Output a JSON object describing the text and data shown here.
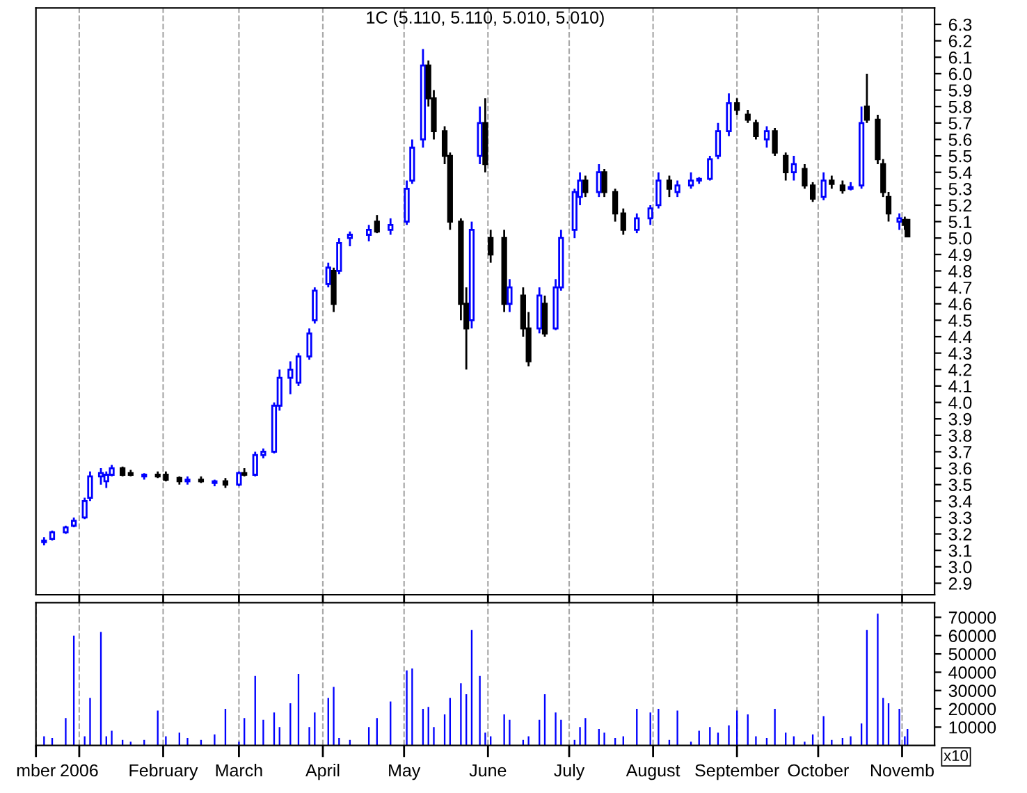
{
  "chart_data": [
    {
      "type": "candlestick",
      "title": "1C (5.110, 5.110, 5.010, 5.010)",
      "x": [
        "2005-12-19",
        "2005-12-22",
        "2005-12-27",
        "2005-12-30",
        "2006-01-03",
        "2006-01-05",
        "2006-01-09",
        "2006-01-11",
        "2006-01-13",
        "2006-01-17",
        "2006-01-20",
        "2006-01-25",
        "2006-01-30",
        "2006-02-02",
        "2006-02-07",
        "2006-02-10",
        "2006-02-15",
        "2006-02-20",
        "2006-02-24",
        "2006-03-01",
        "2006-03-03",
        "2006-03-07",
        "2006-03-10",
        "2006-03-14",
        "2006-03-16",
        "2006-03-20",
        "2006-03-23",
        "2006-03-27",
        "2006-03-29",
        "2006-04-03",
        "2006-04-05",
        "2006-04-07",
        "2006-04-11",
        "2006-04-18",
        "2006-04-21",
        "2006-04-26",
        "2006-05-02",
        "2006-05-04",
        "2006-05-08",
        "2006-05-10",
        "2006-05-12",
        "2006-05-16",
        "2006-05-18",
        "2006-05-22",
        "2006-05-24",
        "2006-05-26",
        "2006-05-29",
        "2006-05-31",
        "2006-06-02",
        "2006-06-07",
        "2006-06-09",
        "2006-06-14",
        "2006-06-16",
        "2006-06-20",
        "2006-06-22",
        "2006-06-26",
        "2006-06-28",
        "2006-07-03",
        "2006-07-05",
        "2006-07-07",
        "2006-07-12",
        "2006-07-14",
        "2006-07-18",
        "2006-07-21",
        "2006-07-26",
        "2006-07-31",
        "2006-08-03",
        "2006-08-07",
        "2006-08-10",
        "2006-08-15",
        "2006-08-18",
        "2006-08-22",
        "2006-08-25",
        "2006-08-29",
        "2006-09-01",
        "2006-09-05",
        "2006-09-08",
        "2006-09-12",
        "2006-09-15",
        "2006-09-19",
        "2006-09-22",
        "2006-09-26",
        "2006-09-29",
        "2006-10-03",
        "2006-10-06",
        "2006-10-10",
        "2006-10-13",
        "2006-10-17",
        "2006-10-19",
        "2006-10-23",
        "2006-10-25",
        "2006-10-27",
        "2006-10-31",
        "2006-11-02",
        "2006-11-03"
      ],
      "ohlc": [
        [
          3.15,
          3.18,
          3.13,
          3.16
        ],
        [
          3.17,
          3.22,
          3.16,
          3.21
        ],
        [
          3.21,
          3.25,
          3.2,
          3.24
        ],
        [
          3.25,
          3.3,
          3.24,
          3.28
        ],
        [
          3.3,
          3.42,
          3.29,
          3.4
        ],
        [
          3.42,
          3.58,
          3.4,
          3.55
        ],
        [
          3.55,
          3.6,
          3.5,
          3.57
        ],
        [
          3.52,
          3.58,
          3.48,
          3.56
        ],
        [
          3.56,
          3.62,
          3.55,
          3.6
        ],
        [
          3.6,
          3.61,
          3.55,
          3.56
        ],
        [
          3.57,
          3.59,
          3.55,
          3.56
        ],
        [
          3.55,
          3.57,
          3.53,
          3.56
        ],
        [
          3.56,
          3.58,
          3.54,
          3.55
        ],
        [
          3.56,
          3.58,
          3.52,
          3.53
        ],
        [
          3.54,
          3.55,
          3.5,
          3.52
        ],
        [
          3.52,
          3.55,
          3.5,
          3.53
        ],
        [
          3.53,
          3.55,
          3.51,
          3.52
        ],
        [
          3.51,
          3.53,
          3.49,
          3.52
        ],
        [
          3.52,
          3.54,
          3.48,
          3.5
        ],
        [
          3.5,
          3.58,
          3.49,
          3.57
        ],
        [
          3.57,
          3.6,
          3.55,
          3.56
        ],
        [
          3.56,
          3.7,
          3.55,
          3.68
        ],
        [
          3.68,
          3.72,
          3.66,
          3.7
        ],
        [
          3.7,
          4.0,
          3.69,
          3.98
        ],
        [
          3.98,
          4.2,
          3.95,
          4.15
        ],
        [
          4.15,
          4.25,
          4.05,
          4.2
        ],
        [
          4.12,
          4.3,
          4.1,
          4.28
        ],
        [
          4.28,
          4.45,
          4.26,
          4.42
        ],
        [
          4.5,
          4.7,
          4.48,
          4.68
        ],
        [
          4.72,
          4.85,
          4.7,
          4.82
        ],
        [
          4.8,
          4.82,
          4.55,
          4.6
        ],
        [
          4.8,
          5.0,
          4.78,
          4.97
        ],
        [
          5.0,
          5.04,
          4.95,
          5.02
        ],
        [
          5.02,
          5.08,
          4.98,
          5.05
        ],
        [
          5.1,
          5.14,
          5.03,
          5.04
        ],
        [
          5.05,
          5.12,
          5.02,
          5.08
        ],
        [
          5.1,
          5.35,
          5.08,
          5.3
        ],
        [
          5.35,
          5.6,
          5.33,
          5.55
        ],
        [
          5.6,
          6.15,
          5.55,
          6.05
        ],
        [
          6.05,
          6.08,
          5.8,
          5.85
        ],
        [
          5.85,
          5.9,
          5.6,
          5.65
        ],
        [
          5.65,
          5.68,
          5.45,
          5.5
        ],
        [
          5.5,
          5.52,
          5.05,
          5.1
        ],
        [
          5.1,
          5.12,
          4.5,
          4.6
        ],
        [
          4.6,
          4.7,
          4.2,
          4.45
        ],
        [
          4.5,
          5.1,
          4.45,
          5.05
        ],
        [
          5.5,
          5.8,
          5.45,
          5.7
        ],
        [
          5.7,
          5.85,
          5.4,
          5.45
        ],
        [
          5.0,
          5.05,
          4.85,
          4.9
        ],
        [
          5.0,
          5.05,
          4.55,
          4.6
        ],
        [
          4.6,
          4.75,
          4.55,
          4.7
        ],
        [
          4.65,
          4.7,
          4.4,
          4.45
        ],
        [
          4.45,
          4.55,
          4.22,
          4.25
        ],
        [
          4.45,
          4.7,
          4.42,
          4.65
        ],
        [
          4.6,
          4.65,
          4.4,
          4.42
        ],
        [
          4.45,
          4.75,
          4.44,
          4.7
        ],
        [
          4.7,
          5.05,
          4.68,
          5.0
        ],
        [
          5.05,
          5.3,
          5.0,
          5.28
        ],
        [
          5.25,
          5.4,
          5.2,
          5.35
        ],
        [
          5.35,
          5.38,
          5.25,
          5.28
        ],
        [
          5.28,
          5.45,
          5.25,
          5.4
        ],
        [
          5.4,
          5.42,
          5.25,
          5.28
        ],
        [
          5.28,
          5.3,
          5.1,
          5.15
        ],
        [
          5.15,
          5.18,
          5.02,
          5.05
        ],
        [
          5.05,
          5.15,
          5.03,
          5.12
        ],
        [
          5.12,
          5.2,
          5.08,
          5.18
        ],
        [
          5.2,
          5.4,
          5.18,
          5.35
        ],
        [
          5.35,
          5.38,
          5.25,
          5.3
        ],
        [
          5.28,
          5.35,
          5.25,
          5.32
        ],
        [
          5.32,
          5.4,
          5.3,
          5.35
        ],
        [
          5.35,
          5.37,
          5.33,
          5.36
        ],
        [
          5.36,
          5.5,
          5.35,
          5.48
        ],
        [
          5.5,
          5.7,
          5.48,
          5.65
        ],
        [
          5.65,
          5.88,
          5.62,
          5.82
        ],
        [
          5.82,
          5.85,
          5.75,
          5.78
        ],
        [
          5.75,
          5.78,
          5.7,
          5.72
        ],
        [
          5.7,
          5.72,
          5.6,
          5.62
        ],
        [
          5.6,
          5.68,
          5.55,
          5.65
        ],
        [
          5.65,
          5.67,
          5.5,
          5.52
        ],
        [
          5.5,
          5.52,
          5.35,
          5.4
        ],
        [
          5.4,
          5.5,
          5.35,
          5.45
        ],
        [
          5.42,
          5.45,
          5.3,
          5.32
        ],
        [
          5.32,
          5.34,
          5.22,
          5.24
        ],
        [
          5.25,
          5.4,
          5.23,
          5.35
        ],
        [
          5.35,
          5.38,
          5.3,
          5.33
        ],
        [
          5.32,
          5.35,
          5.27,
          5.29
        ],
        [
          5.3,
          5.34,
          5.29,
          5.31
        ],
        [
          5.32,
          5.8,
          5.3,
          5.7
        ],
        [
          5.8,
          6.0,
          5.7,
          5.72
        ],
        [
          5.72,
          5.75,
          5.45,
          5.48
        ],
        [
          5.45,
          5.48,
          5.25,
          5.28
        ],
        [
          5.25,
          5.28,
          5.1,
          5.15
        ],
        [
          5.1,
          5.15,
          5.05,
          5.12
        ],
        [
          5.11,
          5.13,
          5.05,
          5.08
        ],
        [
          5.11,
          5.11,
          5.01,
          5.01
        ]
      ],
      "colors": [
        "#0000ff",
        "#0000ff",
        "#0000ff",
        "#0000ff",
        "#0000ff",
        "#0000ff",
        "#0000ff",
        "#0000ff",
        "#0000ff",
        "#000000",
        "#000000",
        "#0000ff",
        "#000000",
        "#000000",
        "#000000",
        "#0000ff",
        "#000000",
        "#0000ff",
        "#000000",
        "#0000ff",
        "#000000",
        "#0000ff",
        "#0000ff",
        "#0000ff",
        "#0000ff",
        "#0000ff",
        "#0000ff",
        "#0000ff",
        "#0000ff",
        "#0000ff",
        "#000000",
        "#0000ff",
        "#0000ff",
        "#0000ff",
        "#000000",
        "#0000ff",
        "#0000ff",
        "#0000ff",
        "#0000ff",
        "#000000",
        "#000000",
        "#000000",
        "#000000",
        "#000000",
        "#000000",
        "#0000ff",
        "#0000ff",
        "#000000",
        "#000000",
        "#000000",
        "#0000ff",
        "#000000",
        "#000000",
        "#0000ff",
        "#000000",
        "#0000ff",
        "#0000ff",
        "#0000ff",
        "#0000ff",
        "#000000",
        "#0000ff",
        "#000000",
        "#000000",
        "#000000",
        "#0000ff",
        "#0000ff",
        "#0000ff",
        "#000000",
        "#0000ff",
        "#0000ff",
        "#0000ff",
        "#0000ff",
        "#0000ff",
        "#0000ff",
        "#000000",
        "#000000",
        "#000000",
        "#0000ff",
        "#000000",
        "#000000",
        "#0000ff",
        "#000000",
        "#000000",
        "#0000ff",
        "#000000",
        "#000000",
        "#0000ff",
        "#0000ff",
        "#000000",
        "#000000",
        "#000000",
        "#000000",
        "#0000ff",
        "#000000",
        "#000000"
      ],
      "xlim": [
        "2005-12-16",
        "2006-11-13"
      ],
      "xticks": [
        {
          "value": "2006-01-01",
          "label": null
        },
        {
          "value": "2006-02-01",
          "label": null
        },
        {
          "value": "2006-03-01",
          "label": null
        },
        {
          "value": "2006-04-01",
          "label": null
        },
        {
          "value": "2006-05-01",
          "label": null
        },
        {
          "value": "2006-06-01",
          "label": null
        },
        {
          "value": "2006-07-01",
          "label": null
        },
        {
          "value": "2006-08-01",
          "label": null
        },
        {
          "value": "2006-09-01",
          "label": null
        },
        {
          "value": "2006-10-01",
          "label": null
        },
        {
          "value": "2006-11-01",
          "label": null
        }
      ],
      "ylim": [
        2.83,
        6.4
      ],
      "yticks": [
        2.9,
        {
          "value": 3,
          "label": "3.0"
        },
        3.1,
        3.2,
        3.3,
        3.4,
        3.5,
        3.6,
        3.7,
        3.8,
        3.9,
        {
          "value": 4,
          "label": "4.0"
        },
        4.1,
        4.2,
        4.3,
        4.4,
        4.5,
        4.6,
        4.7,
        4.8,
        4.9,
        {
          "value": 5,
          "label": "5.0"
        },
        5.1,
        5.2,
        5.3,
        5.4,
        5.5,
        5.6,
        5.7,
        5.8,
        5.9,
        {
          "value": 6,
          "label": "6.0"
        },
        6.1,
        6.2,
        6.3
      ],
      "grid": "x",
      "tick_labels": "y"
    },
    {
      "type": "bar",
      "color": "#0000ff",
      "x": [
        "2005-12-19",
        "2005-12-22",
        "2005-12-27",
        "2005-12-30",
        "2006-01-03",
        "2006-01-05",
        "2006-01-09",
        "2006-01-11",
        "2006-01-13",
        "2006-01-17",
        "2006-01-20",
        "2006-01-25",
        "2006-01-30",
        "2006-02-02",
        "2006-02-07",
        "2006-02-10",
        "2006-02-15",
        "2006-02-20",
        "2006-02-24",
        "2006-03-01",
        "2006-03-03",
        "2006-03-07",
        "2006-03-10",
        "2006-03-14",
        "2006-03-16",
        "2006-03-20",
        "2006-03-23",
        "2006-03-27",
        "2006-03-29",
        "2006-04-03",
        "2006-04-05",
        "2006-04-07",
        "2006-04-11",
        "2006-04-18",
        "2006-04-21",
        "2006-04-26",
        "2006-05-02",
        "2006-05-04",
        "2006-05-08",
        "2006-05-10",
        "2006-05-12",
        "2006-05-16",
        "2006-05-18",
        "2006-05-22",
        "2006-05-24",
        "2006-05-26",
        "2006-05-29",
        "2006-05-31",
        "2006-06-02",
        "2006-06-07",
        "2006-06-09",
        "2006-06-14",
        "2006-06-16",
        "2006-06-20",
        "2006-06-22",
        "2006-06-26",
        "2006-06-28",
        "2006-07-03",
        "2006-07-05",
        "2006-07-07",
        "2006-07-12",
        "2006-07-14",
        "2006-07-18",
        "2006-07-21",
        "2006-07-26",
        "2006-07-31",
        "2006-08-03",
        "2006-08-07",
        "2006-08-10",
        "2006-08-15",
        "2006-08-18",
        "2006-08-22",
        "2006-08-25",
        "2006-08-29",
        "2006-09-01",
        "2006-09-05",
        "2006-09-08",
        "2006-09-12",
        "2006-09-15",
        "2006-09-19",
        "2006-09-22",
        "2006-09-26",
        "2006-09-29",
        "2006-10-03",
        "2006-10-06",
        "2006-10-10",
        "2006-10-13",
        "2006-10-17",
        "2006-10-19",
        "2006-10-23",
        "2006-10-25",
        "2006-10-27",
        "2006-10-31",
        "2006-11-02",
        "2006-11-03"
      ],
      "values": [
        5000,
        4000,
        15000,
        60000,
        5000,
        26000,
        62000,
        5000,
        8000,
        3000,
        2000,
        3000,
        19000,
        5000,
        7000,
        4000,
        3000,
        6000,
        20000,
        2000,
        15000,
        38000,
        14000,
        18000,
        10000,
        23000,
        39000,
        10000,
        18000,
        26000,
        32000,
        4000,
        3000,
        10000,
        15000,
        24000,
        41000,
        42000,
        20000,
        21000,
        10000,
        17000,
        26000,
        34000,
        28000,
        63000,
        38000,
        7000,
        5000,
        17000,
        14000,
        3000,
        5000,
        14000,
        28000,
        18000,
        14000,
        3000,
        10000,
        15000,
        9000,
        7000,
        4000,
        5000,
        20000,
        18000,
        20000,
        3000,
        19000,
        2000,
        8000,
        10000,
        7000,
        11000,
        19000,
        17000,
        5000,
        4000,
        20000,
        7000,
        5000,
        2000,
        6000,
        16000,
        3000,
        4000,
        5000,
        12000,
        63000,
        72000,
        26000,
        23000,
        20000,
        5000,
        9000
      ],
      "xlim": [
        "2005-12-16",
        "2006-11-13"
      ],
      "xticks": [
        {
          "value": "2005-12-16",
          "label": "mber"
        },
        {
          "value": "2006-01-01",
          "label": "2006"
        },
        {
          "value": "2006-02-01",
          "label": "February"
        },
        {
          "value": "2006-03-01",
          "label": "March"
        },
        {
          "value": "2006-04-01",
          "label": "April"
        },
        {
          "value": "2006-05-01",
          "label": "May"
        },
        {
          "value": "2006-06-01",
          "label": "June"
        },
        {
          "value": "2006-07-01",
          "label": "July"
        },
        {
          "value": "2006-08-01",
          "label": "August"
        },
        {
          "value": "2006-09-01",
          "label": "September"
        },
        {
          "value": "2006-10-01",
          "label": "October"
        },
        {
          "value": "2006-11-01",
          "label": "Novemb"
        }
      ],
      "ylim": [
        0,
        78000
      ],
      "yticks": [
        10000,
        20000,
        30000,
        40000,
        50000,
        60000,
        70000
      ],
      "grid": "x",
      "annotations": [
        "x10"
      ]
    }
  ]
}
